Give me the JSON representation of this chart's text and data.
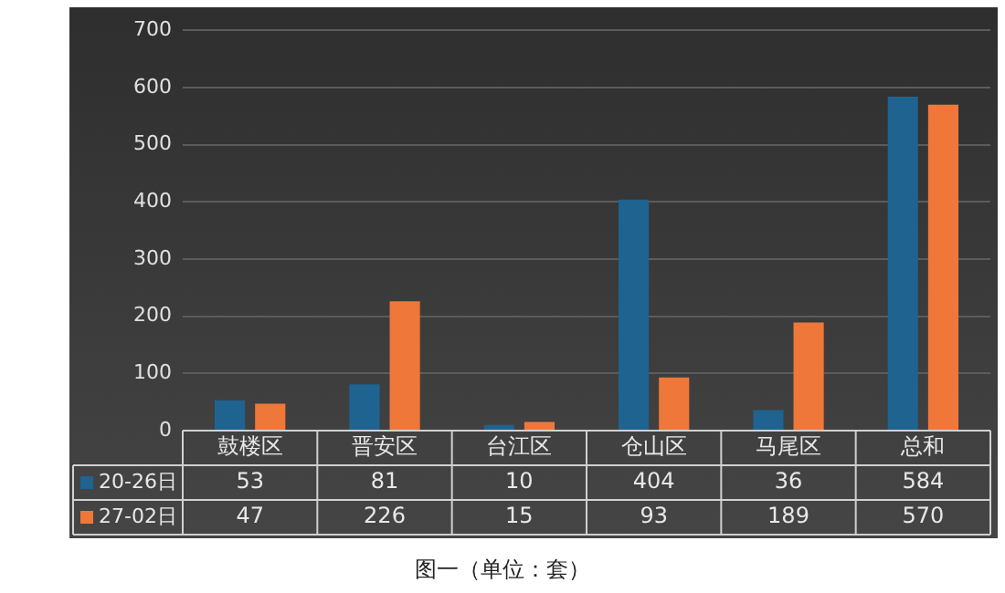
{
  "chart_data": {
    "type": "bar",
    "title": "图一（单位：套）",
    "categories": [
      "鼓楼区",
      "晋安区",
      "台江区",
      "仓山区",
      "马尾区",
      "总和"
    ],
    "series": [
      {
        "name": "20-26日",
        "color": "#1f6391",
        "values": [
          53,
          81,
          10,
          404,
          36,
          584
        ]
      },
      {
        "name": "27-02日",
        "color": "#f0773a",
        "values": [
          47,
          226,
          15,
          93,
          189,
          570
        ]
      }
    ],
    "ylim": [
      0,
      700
    ],
    "yticks": [
      0,
      100,
      200,
      300,
      400,
      500,
      600,
      700
    ],
    "grid": "y",
    "legend": "bottom",
    "data_labels": true
  }
}
